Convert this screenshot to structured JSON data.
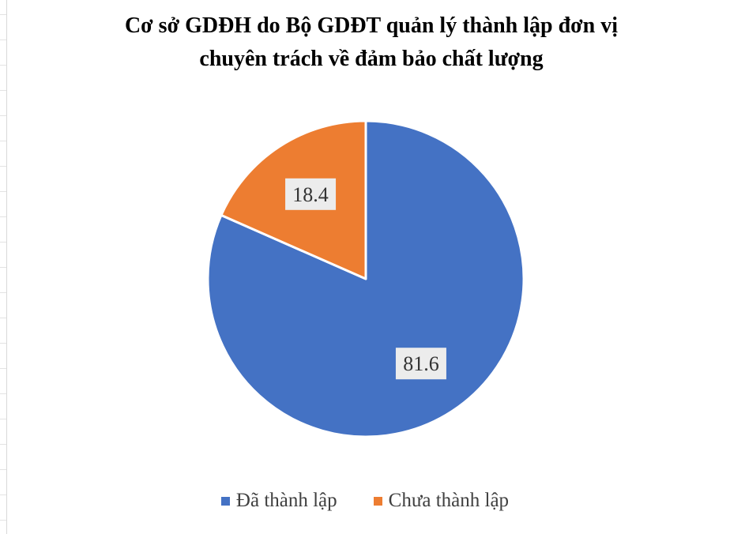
{
  "chart_data": {
    "type": "pie",
    "title_lines": [
      "Cơ sở GDĐH do Bộ GDĐT quản lý thành lập đơn vị",
      "chuyên trách về đảm bảo chất lượng"
    ],
    "categories": [
      "Đã thành lập",
      "Chưa thành lập"
    ],
    "values": [
      81.6,
      18.4
    ],
    "data_labels": [
      "81.6",
      "18.4"
    ],
    "colors": [
      "#4472C4",
      "#ED7D31"
    ],
    "start": "12 o'clock",
    "direction": "clockwise",
    "legend_position": "bottom"
  }
}
